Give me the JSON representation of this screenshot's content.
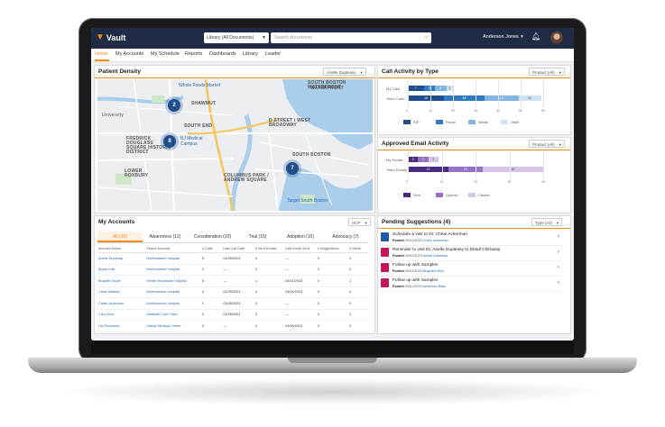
{
  "header": {
    "logo_text": "Vault",
    "scope_label": "Library (All Documents)",
    "search_placeholder": "Search documents",
    "user_name": "Anderson Jones"
  },
  "nav": {
    "items": [
      "Home",
      "My Accounts",
      "My Schedule",
      "Reports",
      "Dashboards",
      "Library",
      "Leader"
    ],
    "active_index": 0
  },
  "patient_density": {
    "title": "Patient Density",
    "filter": "Arielle Dupleasy",
    "clusters": [
      "2",
      "8",
      "7"
    ],
    "map_labels": {
      "back_bay": "WATERFRONT",
      "south_end": "SOUTH END",
      "fredrick": "FREDRICK DOUGLASS SQUARE HISTORIC DISTRICT",
      "lower_roxbury": "LOWER ROXBURY",
      "d_street": "D STREET / WEST BROADWAY",
      "south_boston": "SOUTH BOSTON",
      "south_boston_wf": "SOUTH BOSTON WATERFRONT",
      "columbus": "COLUMBUS PARK / ANDREW SQUARE",
      "shawmut": "SHAWMUT",
      "university": "University"
    },
    "pois": {
      "whole_foods": "Whole Foods Market",
      "bi_medical": "BJ Medical Campus",
      "target": "Target South Boston"
    }
  },
  "call_activity": {
    "title": "Call Activity by Type",
    "filter": "Product (All)",
    "chart_data": {
      "type": "bar",
      "orientation": "horizontal",
      "stacked": true,
      "categories": [
        "My Calls",
        "Team Calls"
      ],
      "series": [
        {
          "name": "F2F",
          "color": "#1f4e8c",
          "values": [
            7,
            16
          ]
        },
        {
          "name": "Phone",
          "color": "#2e7bc4",
          "values": [
            5,
            18
          ]
        },
        {
          "name": "Virtual",
          "color": "#7fb6e3",
          "values": [
            5,
            15
          ]
        },
        {
          "name": "Other",
          "color": "#cfe3f3",
          "values": [
            3,
            10
          ]
        }
      ],
      "x_ticks": [
        "0",
        "10",
        "20",
        "30",
        "40",
        "50",
        "60"
      ],
      "xlim": [
        0,
        60
      ],
      "legend_position": "bottom"
    }
  },
  "email_activity": {
    "title": "Approved Email Activity",
    "filter": "Product (All)",
    "chart_data": {
      "type": "bar",
      "orientation": "horizontal",
      "stacked": true,
      "categories": [
        "My Emails",
        "Team Emails"
      ],
      "series": [
        {
          "name": "Sent",
          "color": "#4b2c83",
          "values": [
            3,
            12
          ]
        },
        {
          "name": "Opened",
          "color": "#9672c2",
          "values": [
            3,
            10
          ]
        },
        {
          "name": "Clicked",
          "color": "#d6c6ec",
          "values": [
            3,
            18
          ]
        }
      ],
      "x_ticks": [
        "0",
        "10",
        "20",
        "30",
        "40"
      ],
      "xlim": [
        0,
        40
      ],
      "legend_position": "bottom"
    }
  },
  "my_accounts": {
    "title": "My Accounts",
    "filter": "HCP",
    "tabs": [
      "All (30)",
      "Awareness (12)",
      "Consideration (20)",
      "Trial (15)",
      "Adoption (10)",
      "Advocacy (7)"
    ],
    "active_tab": 0,
    "columns": [
      "Account Name",
      "Parent Account",
      "# Calls",
      "Last Call Date",
      "# Sent Emails",
      "Last Email Sent",
      "# Suggestions",
      "# Alerts"
    ],
    "rows": [
      [
        "Arielle Dupleasy",
        "Northeastern Hospital",
        "5",
        "01/05/2023",
        "0",
        "—",
        "0",
        "0"
      ],
      [
        "Bryan Carr",
        "Northeastern Hospital",
        "0",
        "—",
        "0",
        "—",
        "0",
        "0"
      ],
      [
        "Brayden Boyle",
        "Winter Mountains Hospital",
        "5",
        "—",
        "1",
        "04/01/2023",
        "1",
        "1"
      ],
      [
        "Chloe Watson",
        "Northeastern Hospital",
        "3",
        "01/05/2023",
        "0",
        "04/01/2023",
        "0",
        "0"
      ],
      [
        "Carter Ackerman",
        "Northeastern Hospital",
        "1",
        "01/05/2023",
        "0",
        "—",
        "0",
        "0"
      ],
      [
        "Cleo Nicol",
        "Waterfall Care Clinic",
        "0",
        "01/06/2023",
        "3",
        "—",
        "0",
        "0"
      ],
      [
        "Lila Rumsford",
        "Carlyle Medical Center",
        "0",
        "—",
        "0",
        "04/06/2023",
        "0",
        "0"
      ]
    ]
  },
  "pending_suggestions": {
    "title": "Pending Suggestions (4)",
    "filter": "Type (All)",
    "posted_label": "Posted",
    "items": [
      {
        "title": "Schedule a visit to Dr. Chloe Ackerman",
        "date": "03/01/2023",
        "person": "Chloe Ackerman",
        "color": "#1f5aa8"
      },
      {
        "title": "Reminder to visit Dr. Arielle Dupleasy to Detail Chilsatop",
        "date": "03/01/2023",
        "person": "Arielle Dupleasy",
        "color": "#c2185b"
      },
      {
        "title": "Follow up with Samples",
        "date": "03/01/2023",
        "person": "Brayden Wolf",
        "color": "#c2185b"
      },
      {
        "title": "Follow up with Samples",
        "date": "03/01/2023",
        "person": "Anderson Bliss",
        "color": "#c2185b"
      }
    ]
  }
}
